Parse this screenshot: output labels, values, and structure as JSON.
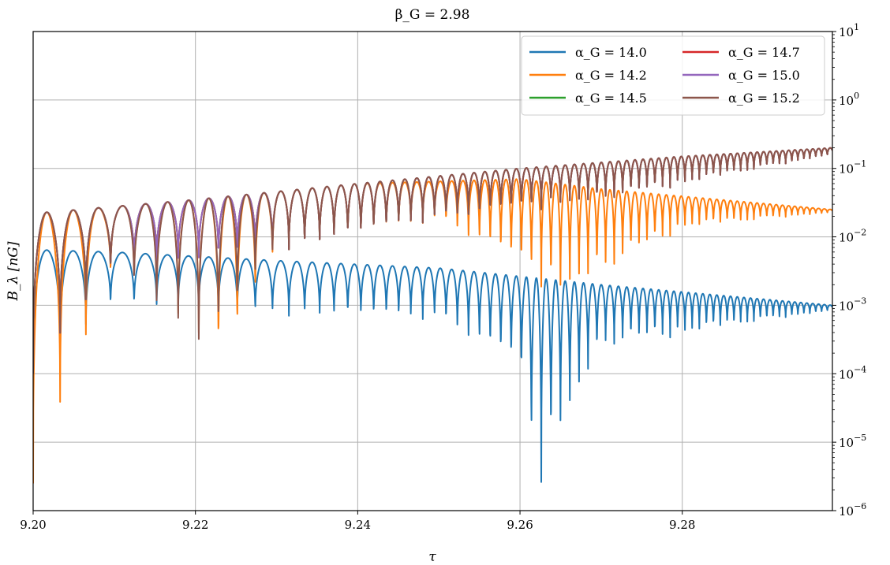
{
  "chart_data": {
    "type": "line",
    "title": "β_G = 2.98",
    "xlabel": "τ",
    "ylabel": "B_λ [nG]",
    "xlim": [
      9.2,
      9.2985
    ],
    "ylim": [
      1e-06,
      10
    ],
    "yscale": "log",
    "y_axis_side": "right",
    "grid": true,
    "legend_location": "upper right",
    "legend_columns": 2,
    "x_ticks": [
      9.2,
      9.22,
      9.24,
      9.26,
      9.28
    ],
    "x_tick_labels": [
      "9.20",
      "9.22",
      "9.24",
      "9.26",
      "9.28"
    ],
    "y_ticks": [
      1e-06,
      1e-05,
      0.0001,
      0.001,
      0.01,
      0.1,
      1,
      10
    ],
    "y_tick_bases": [
      "10",
      "10",
      "10",
      "10",
      "10",
      "10",
      "10",
      "10"
    ],
    "y_tick_exponents": [
      "−6",
      "−5",
      "−4",
      "−3",
      "−2",
      "−1",
      "0",
      "1"
    ],
    "series": [
      {
        "name": "α_G = 14.0",
        "color": "#1f77b4",
        "peak_envelope": [
          [
            9.2,
            0.0065
          ],
          [
            9.21,
            0.006
          ],
          [
            9.23,
            0.0045
          ],
          [
            9.25,
            0.0035
          ],
          [
            9.27,
            0.002
          ],
          [
            9.2985,
            0.001
          ]
        ],
        "trough_envelope": [
          [
            9.2,
            0.0001
          ],
          [
            9.21,
            0.0009
          ],
          [
            9.23,
            0.0006
          ],
          [
            9.25,
            0.0005
          ],
          [
            9.26,
            8e-05
          ],
          [
            9.262,
            1.2e-06
          ],
          [
            9.27,
            0.0002
          ],
          [
            9.2985,
            0.0008
          ]
        ],
        "periods": [
          [
            9.2,
            0.0034
          ],
          [
            9.24,
            0.0016
          ],
          [
            9.28,
            0.0009
          ],
          [
            9.2985,
            0.0007
          ]
        ]
      },
      {
        "name": "α_G = 14.2",
        "color": "#ff7f0e",
        "peak_envelope": [
          [
            9.2,
            0.022
          ],
          [
            9.22,
            0.035
          ],
          [
            9.24,
            0.06
          ],
          [
            9.26,
            0.07
          ],
          [
            9.27,
            0.05
          ],
          [
            9.2985,
            0.025
          ]
        ],
        "trough_envelope": [
          [
            9.2,
            2.5e-06
          ],
          [
            9.21,
            0.003
          ],
          [
            9.2237,
            0.0001
          ],
          [
            9.23,
            0.005
          ],
          [
            9.25,
            0.015
          ],
          [
            9.265,
            0.001
          ],
          [
            9.28,
            0.012
          ],
          [
            9.2985,
            0.022
          ]
        ],
        "periods": [
          [
            9.2,
            0.0034
          ],
          [
            9.24,
            0.0016
          ],
          [
            9.28,
            0.0009
          ],
          [
            9.2985,
            0.0007
          ]
        ]
      },
      {
        "name": "α_G = 14.5",
        "color": "#2ca02c",
        "peak_envelope": [
          [
            9.2,
            0.022
          ],
          [
            9.22,
            0.035
          ],
          [
            9.24,
            0.06
          ],
          [
            9.26,
            0.1
          ],
          [
            9.28,
            0.15
          ],
          [
            9.2985,
            0.2
          ]
        ],
        "trough_envelope": [
          [
            9.2,
            0.0001
          ],
          [
            9.21,
            0.003
          ],
          [
            9.23,
            0.005
          ],
          [
            9.25,
            0.015
          ],
          [
            9.27,
            0.03
          ],
          [
            9.2985,
            0.15
          ]
        ],
        "periods": [
          [
            9.2,
            0.0034
          ],
          [
            9.24,
            0.0016
          ],
          [
            9.28,
            0.0009
          ],
          [
            9.2985,
            0.0007
          ]
        ]
      },
      {
        "name": "α_G = 14.7",
        "color": "#d62728",
        "peak_envelope": [
          [
            9.2,
            0.022
          ],
          [
            9.22,
            0.035
          ],
          [
            9.24,
            0.06
          ],
          [
            9.26,
            0.1
          ],
          [
            9.28,
            0.15
          ],
          [
            9.2985,
            0.2
          ]
        ],
        "trough_envelope": [
          [
            9.2,
            0.0001
          ],
          [
            9.21,
            0.003
          ],
          [
            9.23,
            0.005
          ],
          [
            9.25,
            0.015
          ],
          [
            9.27,
            0.03
          ],
          [
            9.2985,
            0.15
          ]
        ],
        "periods": [
          [
            9.2,
            0.0034
          ],
          [
            9.24,
            0.0016
          ],
          [
            9.28,
            0.0009
          ],
          [
            9.2985,
            0.0007
          ]
        ]
      },
      {
        "name": "α_G = 15.0",
        "color": "#9467bd",
        "peak_envelope": [
          [
            9.2,
            0.022
          ],
          [
            9.22,
            0.035
          ],
          [
            9.24,
            0.06
          ],
          [
            9.26,
            0.1
          ],
          [
            9.28,
            0.15
          ],
          [
            9.2985,
            0.2
          ]
        ],
        "trough_envelope": [
          [
            9.2,
            0.0001
          ],
          [
            9.21,
            0.003
          ],
          [
            9.23,
            0.005
          ],
          [
            9.25,
            0.015
          ],
          [
            9.27,
            0.03
          ],
          [
            9.2985,
            0.15
          ]
        ],
        "periods": [
          [
            9.2,
            0.0034
          ],
          [
            9.24,
            0.0016
          ],
          [
            9.28,
            0.0009
          ],
          [
            9.2985,
            0.0007
          ]
        ]
      },
      {
        "name": "α_G = 15.2",
        "color": "#8c564b",
        "peak_envelope": [
          [
            9.2,
            0.022
          ],
          [
            9.22,
            0.035
          ],
          [
            9.24,
            0.06
          ],
          [
            9.26,
            0.1
          ],
          [
            9.28,
            0.15
          ],
          [
            9.2985,
            0.2
          ]
        ],
        "trough_envelope": [
          [
            9.2,
            0.0001
          ],
          [
            9.21,
            0.003
          ],
          [
            9.2213,
            0.00014
          ],
          [
            9.23,
            0.005
          ],
          [
            9.25,
            0.015
          ],
          [
            9.27,
            0.03
          ],
          [
            9.2985,
            0.15
          ]
        ],
        "periods": [
          [
            9.2,
            0.0034
          ],
          [
            9.24,
            0.0016
          ],
          [
            9.28,
            0.0009
          ],
          [
            9.2985,
            0.0007
          ]
        ]
      }
    ]
  }
}
